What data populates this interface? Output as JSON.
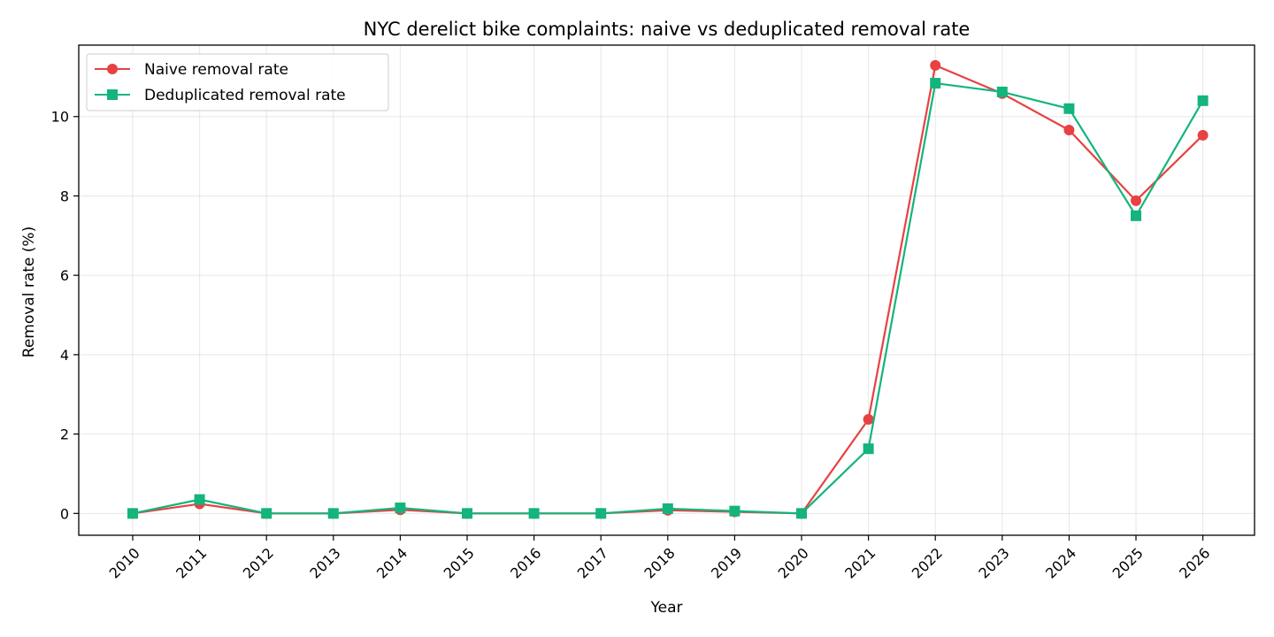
{
  "chart_data": {
    "type": "line",
    "title": "NYC derelict bike complaints: naive vs deduplicated removal rate",
    "xlabel": "Year",
    "ylabel": "Removal rate (%)",
    "categories": [
      "2010",
      "2011",
      "2012",
      "2013",
      "2014",
      "2015",
      "2016",
      "2017",
      "2018",
      "2019",
      "2020",
      "2021",
      "2022",
      "2023",
      "2024",
      "2025",
      "2026"
    ],
    "yticks": [
      "0",
      "2",
      "4",
      "6",
      "8",
      "10"
    ],
    "ylim": [
      -0.55,
      11.8
    ],
    "grid": true,
    "legend_position": "top-left",
    "series": [
      {
        "name": "Naive removal rate",
        "color": "#e84142",
        "marker": "circle",
        "values": [
          0.0,
          0.24,
          0.0,
          0.0,
          0.09,
          0.0,
          0.0,
          0.0,
          0.08,
          0.04,
          0.0,
          2.37,
          11.29,
          10.58,
          9.66,
          7.88,
          9.53
        ]
      },
      {
        "name": "Deduplicated removal rate",
        "color": "#14b47c",
        "marker": "square",
        "values": [
          0.0,
          0.35,
          0.0,
          0.0,
          0.14,
          0.0,
          0.0,
          0.0,
          0.12,
          0.06,
          0.0,
          1.63,
          10.84,
          10.62,
          10.2,
          7.5,
          10.4
        ]
      }
    ]
  }
}
